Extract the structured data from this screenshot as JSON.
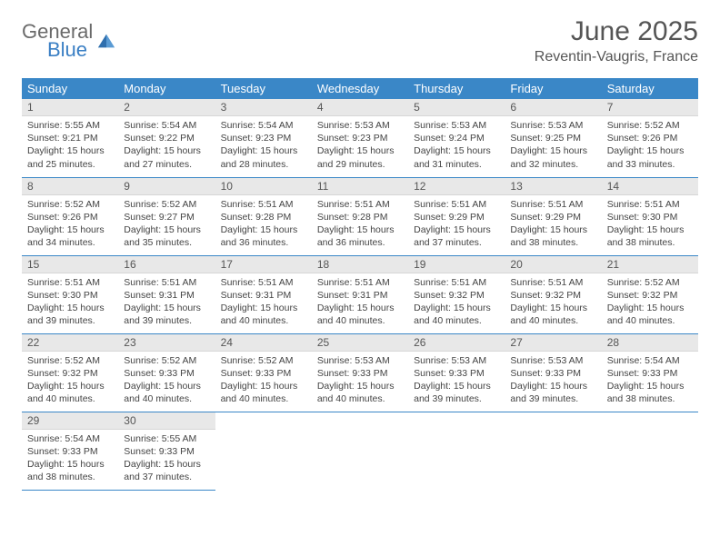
{
  "logo": {
    "text_general": "General",
    "text_blue": "Blue"
  },
  "title": "June 2025",
  "location": "Reventin-Vaugris, France",
  "colors": {
    "header_bg": "#3a87c7",
    "header_text": "#ffffff",
    "daynum_bg": "#e8e8e8",
    "border": "#3a87c7",
    "logo_gray": "#6a6a6a",
    "logo_blue": "#3a7fc4"
  },
  "weekdays": [
    "Sunday",
    "Monday",
    "Tuesday",
    "Wednesday",
    "Thursday",
    "Friday",
    "Saturday"
  ],
  "days": [
    {
      "n": "1",
      "sunrise": "5:55 AM",
      "sunset": "9:21 PM",
      "dl": "15 hours and 25 minutes."
    },
    {
      "n": "2",
      "sunrise": "5:54 AM",
      "sunset": "9:22 PM",
      "dl": "15 hours and 27 minutes."
    },
    {
      "n": "3",
      "sunrise": "5:54 AM",
      "sunset": "9:23 PM",
      "dl": "15 hours and 28 minutes."
    },
    {
      "n": "4",
      "sunrise": "5:53 AM",
      "sunset": "9:23 PM",
      "dl": "15 hours and 29 minutes."
    },
    {
      "n": "5",
      "sunrise": "5:53 AM",
      "sunset": "9:24 PM",
      "dl": "15 hours and 31 minutes."
    },
    {
      "n": "6",
      "sunrise": "5:53 AM",
      "sunset": "9:25 PM",
      "dl": "15 hours and 32 minutes."
    },
    {
      "n": "7",
      "sunrise": "5:52 AM",
      "sunset": "9:26 PM",
      "dl": "15 hours and 33 minutes."
    },
    {
      "n": "8",
      "sunrise": "5:52 AM",
      "sunset": "9:26 PM",
      "dl": "15 hours and 34 minutes."
    },
    {
      "n": "9",
      "sunrise": "5:52 AM",
      "sunset": "9:27 PM",
      "dl": "15 hours and 35 minutes."
    },
    {
      "n": "10",
      "sunrise": "5:51 AM",
      "sunset": "9:28 PM",
      "dl": "15 hours and 36 minutes."
    },
    {
      "n": "11",
      "sunrise": "5:51 AM",
      "sunset": "9:28 PM",
      "dl": "15 hours and 36 minutes."
    },
    {
      "n": "12",
      "sunrise": "5:51 AM",
      "sunset": "9:29 PM",
      "dl": "15 hours and 37 minutes."
    },
    {
      "n": "13",
      "sunrise": "5:51 AM",
      "sunset": "9:29 PM",
      "dl": "15 hours and 38 minutes."
    },
    {
      "n": "14",
      "sunrise": "5:51 AM",
      "sunset": "9:30 PM",
      "dl": "15 hours and 38 minutes."
    },
    {
      "n": "15",
      "sunrise": "5:51 AM",
      "sunset": "9:30 PM",
      "dl": "15 hours and 39 minutes."
    },
    {
      "n": "16",
      "sunrise": "5:51 AM",
      "sunset": "9:31 PM",
      "dl": "15 hours and 39 minutes."
    },
    {
      "n": "17",
      "sunrise": "5:51 AM",
      "sunset": "9:31 PM",
      "dl": "15 hours and 40 minutes."
    },
    {
      "n": "18",
      "sunrise": "5:51 AM",
      "sunset": "9:31 PM",
      "dl": "15 hours and 40 minutes."
    },
    {
      "n": "19",
      "sunrise": "5:51 AM",
      "sunset": "9:32 PM",
      "dl": "15 hours and 40 minutes."
    },
    {
      "n": "20",
      "sunrise": "5:51 AM",
      "sunset": "9:32 PM",
      "dl": "15 hours and 40 minutes."
    },
    {
      "n": "21",
      "sunrise": "5:52 AM",
      "sunset": "9:32 PM",
      "dl": "15 hours and 40 minutes."
    },
    {
      "n": "22",
      "sunrise": "5:52 AM",
      "sunset": "9:32 PM",
      "dl": "15 hours and 40 minutes."
    },
    {
      "n": "23",
      "sunrise": "5:52 AM",
      "sunset": "9:33 PM",
      "dl": "15 hours and 40 minutes."
    },
    {
      "n": "24",
      "sunrise": "5:52 AM",
      "sunset": "9:33 PM",
      "dl": "15 hours and 40 minutes."
    },
    {
      "n": "25",
      "sunrise": "5:53 AM",
      "sunset": "9:33 PM",
      "dl": "15 hours and 40 minutes."
    },
    {
      "n": "26",
      "sunrise": "5:53 AM",
      "sunset": "9:33 PM",
      "dl": "15 hours and 39 minutes."
    },
    {
      "n": "27",
      "sunrise": "5:53 AM",
      "sunset": "9:33 PM",
      "dl": "15 hours and 39 minutes."
    },
    {
      "n": "28",
      "sunrise": "5:54 AM",
      "sunset": "9:33 PM",
      "dl": "15 hours and 38 minutes."
    },
    {
      "n": "29",
      "sunrise": "5:54 AM",
      "sunset": "9:33 PM",
      "dl": "15 hours and 38 minutes."
    },
    {
      "n": "30",
      "sunrise": "5:55 AM",
      "sunset": "9:33 PM",
      "dl": "15 hours and 37 minutes."
    }
  ],
  "labels": {
    "sunrise": "Sunrise:",
    "sunset": "Sunset:",
    "daylight": "Daylight:"
  }
}
